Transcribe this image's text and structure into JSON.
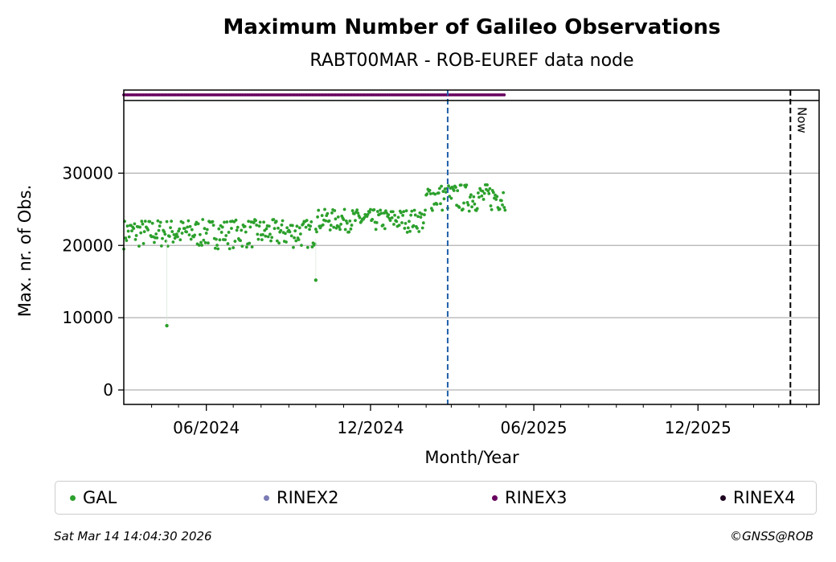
{
  "chart_data": {
    "type": "scatter",
    "title": "Maximum Number of Galileo Observations",
    "subtitle": "RABT00MAR - ROB-EUREF data node",
    "xlabel": "Month/Year",
    "ylabel": "Max. nr. of Obs.",
    "x_tick_labels": [
      "06/2024",
      "12/2024",
      "06/2025",
      "12/2025"
    ],
    "x_range": [
      "2024-03-01",
      "2026-04-15"
    ],
    "y_ticks": [
      0,
      10000,
      20000,
      30000
    ],
    "ylim": [
      -2000,
      41500
    ],
    "grid": "horizontal",
    "series": [
      {
        "name": "GAL",
        "color": "#2ca02c",
        "segments": [
          {
            "start": "2024-03-01",
            "end": "2024-09-30",
            "min": 19500,
            "max": 23600
          },
          {
            "start": "2024-10-01",
            "end": "2025-01-31",
            "min": 21800,
            "max": 25000
          },
          {
            "start": "2025-02-01",
            "end": "2025-04-30",
            "min": 24500,
            "max": 28500
          }
        ],
        "outliers": [
          {
            "x": "2024-04-18",
            "y": 8900
          },
          {
            "x": "2024-10-01",
            "y": 15200
          }
        ]
      }
    ],
    "format_bar": {
      "series": "RINEX3",
      "color": "#68005f",
      "start": "2024-03-01",
      "end": "2025-04-30"
    },
    "event_line": {
      "x": "2025-02-25",
      "color": "#1f5fa8"
    },
    "now_line": {
      "x": "2026-03-14",
      "label": "Now"
    },
    "legend": [
      {
        "label": "GAL",
        "color": "#2ca02c"
      },
      {
        "label": "RINEX2",
        "color": "#7b7bb5"
      },
      {
        "label": "RINEX3",
        "color": "#68005f"
      },
      {
        "label": "RINEX4",
        "color": "#1e0420"
      }
    ],
    "legend_placement": "bottom"
  },
  "footer": {
    "timestamp": "Sat Mar 14 14:04:30 2026",
    "copyright": "©GNSS@ROB"
  }
}
